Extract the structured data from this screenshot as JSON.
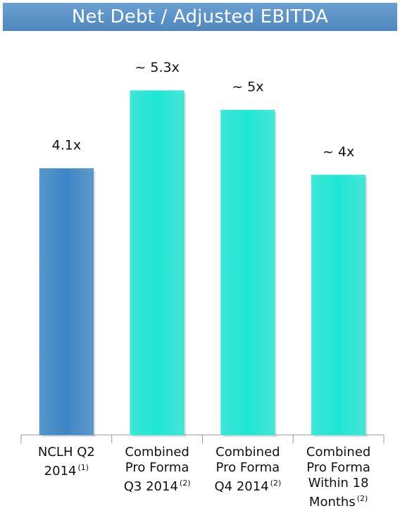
{
  "title": "Net Debt / Adjusted EBITDA",
  "colors": {
    "title_bar": "#5a90c5",
    "bar_blue": "#3d86c6",
    "bar_teal": "#1fe6d4",
    "axis": "#999999"
  },
  "chart_data": {
    "type": "bar",
    "title": "Net Debt / Adjusted EBITDA",
    "categories": [
      "NCLH Q2 2014 (1)",
      "Combined Pro Forma Q3 2014 (2)",
      "Combined Pro Forma Q4 2014 (2)",
      "Combined Pro Forma Within 18 Months(2)"
    ],
    "category_lines": [
      {
        "lines": [
          "NCLH Q2",
          "2014"
        ],
        "footnote": "(1)"
      },
      {
        "lines": [
          "Combined",
          "Pro Forma",
          "Q3 2014"
        ],
        "footnote": "(2)"
      },
      {
        "lines": [
          "Combined",
          "Pro Forma",
          "Q4 2014"
        ],
        "footnote": "(2)"
      },
      {
        "lines": [
          "Combined",
          "Pro Forma",
          "Within 18",
          "Months"
        ],
        "footnote": "(2)"
      }
    ],
    "values": [
      4.1,
      5.3,
      5.0,
      4.0
    ],
    "data_labels": [
      "4.1x",
      "~ 5.3x",
      "~ 5x",
      "~ 4x"
    ],
    "bar_colors": [
      "#3d86c6",
      "#1fe6d4",
      "#1fe6d4",
      "#1fe6d4"
    ],
    "xlabel": "",
    "ylabel": "",
    "ylim": [
      0,
      5.3
    ],
    "grid": false,
    "legend": "none"
  }
}
